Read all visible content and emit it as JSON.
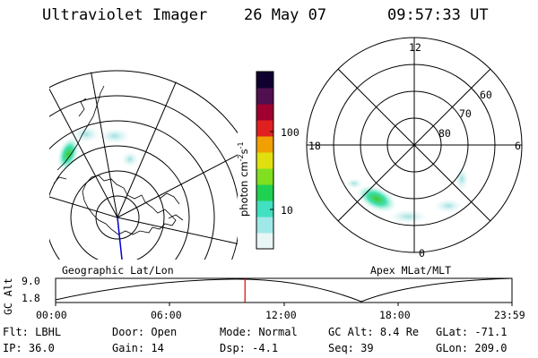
{
  "header": {
    "instrument": "Ultraviolet Imager",
    "date": "26 May 07",
    "time": "09:57:33 UT"
  },
  "colorbar": {
    "unit_label": "photon cm",
    "unit_exp1": "-2",
    "unit_s": "s",
    "unit_exp2": "-1",
    "ticks": [
      {
        "value": 100,
        "label": "100"
      },
      {
        "value": 10,
        "label": "10"
      }
    ],
    "colors": [
      "#e8f6f6",
      "#a0e8e8",
      "#40e0c0",
      "#20d050",
      "#80e020",
      "#e0e010",
      "#f0a000",
      "#e02020",
      "#a00030",
      "#501050",
      "#100030"
    ]
  },
  "left_map": {
    "label": "Geographic Lat/Lon"
  },
  "right_map": {
    "label": "Apex MLat/MLT",
    "mlt_labels": {
      "top": "12",
      "left": "18",
      "right": "6",
      "bottom": "0"
    },
    "mlat_labels": [
      "60",
      "70",
      "80"
    ]
  },
  "altitude_plot": {
    "ylabel": "GC Alt",
    "yticks": [
      "9.0",
      "1.8"
    ],
    "xticks": [
      "00:00",
      "06:00",
      "12:00",
      "18:00",
      "23:59"
    ],
    "current_time_hours": 9.96
  },
  "info": {
    "filter": {
      "label": "Flt:",
      "value": "LBHL"
    },
    "door": {
      "label": "Door:",
      "value": "Open"
    },
    "mode": {
      "label": "Mode:",
      "value": "Normal"
    },
    "gc_alt": {
      "label": "GC Alt:",
      "value": "8.4 Re"
    },
    "glat": {
      "label": "GLat:",
      "value": "-71.1"
    },
    "ip": {
      "label": "IP:",
      "value": "36.0"
    },
    "gain": {
      "label": "Gain:",
      "value": "14"
    },
    "dsp": {
      "label": "Dsp:",
      "value": "-4.1"
    },
    "seq": {
      "label": "Seq:",
      "value": "39"
    },
    "glon": {
      "label": "GLon:",
      "value": "209.0"
    }
  }
}
